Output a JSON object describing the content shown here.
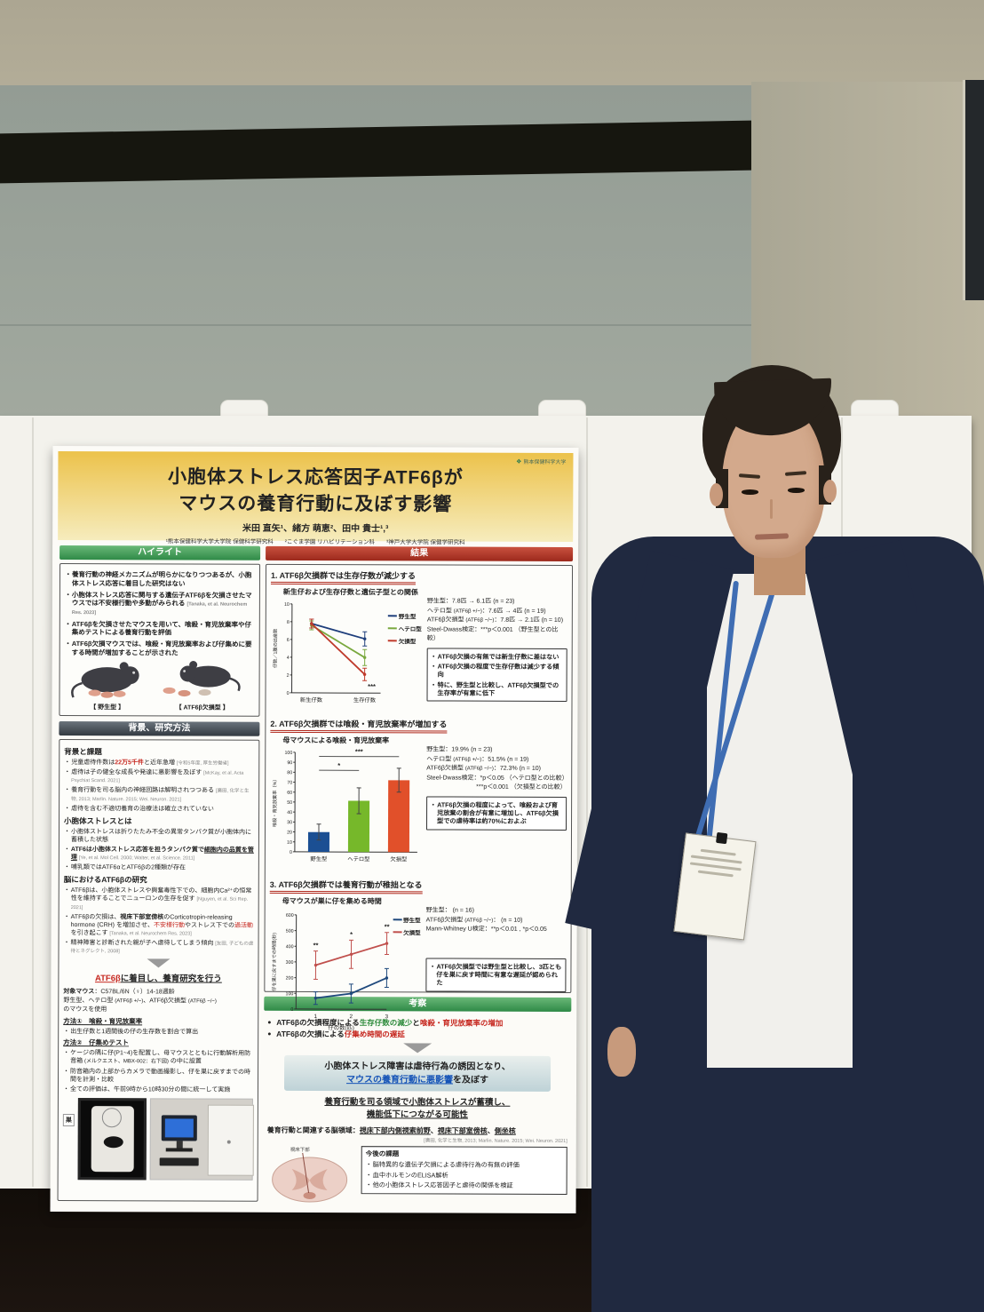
{
  "poster": {
    "logo_text": "熊本保健科学大学",
    "title_line1": "小胞体ストレス応答因子ATF6βが",
    "title_line2": "マウスの養育行動に及ぼす影響",
    "authors": "米田 直矢¹、緒方 萌恵²、田中 貴士¹,³",
    "affiliations": "¹熊本保健科学大学大学院 保健科学研究科　　²こぐま学園 リハビリテーション科　　³神戸大学大学院 保健学研究科",
    "highlights": {
      "header": "ハイライト",
      "bullets": [
        [
          {
            "t": "養育行動の神経メカニズムが明らかになりつつあるが、小胞体ストレス応答に着目した研究はない"
          }
        ],
        [
          {
            "t": "小胞体ストレス応答に関与する遺伝子ATF6βを欠損させたマウスでは不安様行動や多動がみられる "
          },
          {
            "t": "[Tanaka, et al. Neurochem Res. 2023]",
            "s": "ref"
          }
        ],
        [
          {
            "t": "ATF6βを欠損させたマウスを用いて、喰殺・育児放棄率や仔集めテストによる養育行動を評価"
          }
        ],
        [
          {
            "t": "ATF6β欠損マウスでは、喰殺・育児放棄率および仔集めに要する時間が増加することが示された"
          }
        ]
      ],
      "mouse_labels": [
        "【 野生型 】",
        "【 ATF6β欠損型 】"
      ]
    },
    "background": {
      "header": "背景、研究方法",
      "issues_title": "背景と課題",
      "issues": [
        [
          {
            "t": "児童虐待件数は"
          },
          {
            "t": "22万5千件",
            "s": "r bold"
          },
          {
            "t": "と近年急増 "
          },
          {
            "t": "[令和5年度, 厚生労働省]",
            "s": "ref"
          }
        ],
        [
          {
            "t": "虐待は子の健全な成長や発達に悪影響を及ぼす "
          },
          {
            "t": "[McKay, et al. Acta Psychiat Scand. 2021]",
            "s": "ref"
          }
        ],
        [
          {
            "t": "養育行動を司る脳内の神経回路は解明されつつある "
          },
          {
            "t": "[廣田, 化学と生物, 2013; Marlin. Nature. 2015; Wei. Neuron. 2021]",
            "s": "ref"
          }
        ],
        [
          {
            "t": "虐待を含む不適切養育の治療法は確立されていない"
          }
        ]
      ],
      "er_title": "小胞体ストレスとは",
      "er": [
        [
          {
            "t": "小胞体ストレスは折りたたみ不全の異常タンパク質が小胞体内に蓄積した状態"
          }
        ],
        [
          {
            "t": "ATF6は小胞体ストレス応答を担うタンパク質で",
            "s": "bold"
          },
          {
            "t": "細胞内の品質を管理",
            "s": "bold u"
          },
          {
            "t": " "
          },
          {
            "t": "[Ye, et al. Mol Cell. 2000; Walter, et al. Science. 2011]",
            "s": "ref"
          }
        ],
        [
          {
            "t": "哺乳類ではATF6αとATF6βの2種類が存在"
          }
        ]
      ],
      "brain_title": "脳におけるATF6βの研究",
      "brain": [
        [
          {
            "t": "ATF6βは、小胞体ストレスや興奮毒性下での、細胞内Ca²⁺の恒常性を維持することでニューロンの生存を促す "
          },
          {
            "t": "[Nguyen, et al. Sci Rep. 2021]",
            "s": "ref"
          }
        ],
        [
          {
            "t": "ATF6βの欠損は、"
          },
          {
            "t": "視床下部室傍核",
            "s": "bold"
          },
          {
            "t": "のCorticotropin-releasing hormone (CRH) を増加させ、"
          },
          {
            "t": "不安様行動",
            "s": "r"
          },
          {
            "t": "やストレス下での"
          },
          {
            "t": "過活動",
            "s": "r"
          },
          {
            "t": "を引き起こす "
          },
          {
            "t": "[Tanaka, et al. Neurochem Res. 2023]",
            "s": "ref"
          }
        ],
        [
          {
            "t": "精神障害と診断された親が子へ虐待してしまう傾向 "
          },
          {
            "t": "[友田, 子どもの虐待とネグレクト, 2008]",
            "s": "ref"
          }
        ]
      ],
      "focus": [
        {
          "t": "ATF6β",
          "s": "r u bold"
        },
        {
          "t": "に着目し、養育研究を行う",
          "s": "u bold"
        }
      ],
      "subjects": [
        [
          {
            "t": "対象マウス",
            "s": "bold"
          },
          {
            "t": "：C57BL/6N（♀）14-18週齢"
          }
        ],
        [
          {
            "t": "野生型、ヘテロ型 "
          },
          {
            "t": "(ATF6β +/−)",
            "s": "sm"
          },
          {
            "t": "、ATF6β欠損型 "
          },
          {
            "t": "(ATF6β −/−)",
            "s": "sm"
          }
        ],
        [
          {
            "t": "のマウスを使用"
          }
        ]
      ],
      "method1_title": [
        {
          "t": "方法①　喰殺・育児放棄率",
          "s": "bold u"
        }
      ],
      "method1": [
        [
          {
            "t": "出生仔数と1週間後の仔の生存数を割合で算出"
          }
        ]
      ],
      "method2_title": [
        {
          "t": "方法②　仔集めテスト",
          "s": "bold u"
        }
      ],
      "method2": [
        [
          {
            "t": "ケージの隅に仔(P1~4)を配置し、母マウスとともに行動解析用防音箱 "
          },
          {
            "t": "(メルクエスト、MBX-002：右下図)",
            "s": "sm"
          },
          {
            "t": " の中に設置"
          }
        ],
        [
          {
            "t": "防音箱内の上部からカメラで動画撮影し、仔を巣に戻すまでの時間を計測・比較"
          }
        ],
        [
          {
            "t": "全ての評価は、午前9時から10時30分の間に統一して実施"
          }
        ]
      ],
      "nest_label": "巣"
    },
    "results": {
      "header": "結果",
      "s1": {
        "title": "1. ATF6β欠損群では生存仔数が減少する",
        "chart_title": "新生仔および生存仔数と遺伝子型との関係",
        "stats": [
          [
            {
              "t": "野生型：7.8匹 → 6.1匹 (n = 23)"
            }
          ],
          [
            {
              "t": "ヘテロ型 "
            },
            {
              "t": "(ATF6β +/−)",
              "s": "sm"
            },
            {
              "t": "：7.6匹 → 4匹 (n = 19)"
            }
          ],
          [
            {
              "t": "ATF6β欠損型 "
            },
            {
              "t": "(ATF6β −/−)",
              "s": "sm"
            },
            {
              "t": "：7.8匹 → 2.1匹 (n = 10)"
            }
          ],
          [
            {
              "t": "Steel-Dwass検定：***p＜0.001 （野生型との比較）"
            }
          ]
        ],
        "notes": [
          [
            {
              "t": "ATF6β欠損の有無では新生仔数に差はない"
            }
          ],
          [
            {
              "t": "ATF6β欠損の程度で生存仔数は減少する傾向"
            }
          ],
          [
            {
              "t": "特に、野生型と比較し、ATF6β欠損型での生存率が有意に低下"
            }
          ]
        ]
      },
      "s2": {
        "title": "2. ATF6β欠損群では喰殺・育児放棄率が増加する",
        "chart_title": "母マウスによる喰殺・育児放棄率",
        "stats": [
          [
            {
              "t": "野生型：19.9% (n = 23)"
            }
          ],
          [
            {
              "t": "ヘテロ型 "
            },
            {
              "t": "(ATF6β +/−)",
              "s": "sm"
            },
            {
              "t": "：51.5% (n = 19)"
            }
          ],
          [
            {
              "t": "ATF6β欠損型 "
            },
            {
              "t": "(ATF6β −/−)",
              "s": "sm"
            },
            {
              "t": "：72.3% (n = 10)"
            }
          ],
          [
            {
              "t": "Steel-Dwass検定：*p＜0.05 （ヘテロ型との比較）"
            }
          ],
          [
            {
              "t": "***p＜0.001 （欠損型との比較）",
              "s": "ml"
            }
          ]
        ],
        "notes": [
          [
            {
              "t": "ATF6β欠損の程度によって、喰殺および育児放棄の割合が有意に増加し、ATF6β欠損型での虐待率は約70%におよぶ"
            }
          ]
        ]
      },
      "s3": {
        "title": "3. ATF6β欠損群では養育行動が稚拙となる",
        "chart_title": "母マウスが巣に仔を集める時間",
        "stats": [
          [
            {
              "t": "野生型： (n = 16)"
            }
          ],
          [
            {
              "t": "ATF6β欠損型 "
            },
            {
              "t": "(ATF6β −/−)",
              "s": "sm"
            },
            {
              "t": "： (n = 10)"
            }
          ],
          [
            {
              "t": "Mann-Whitney U検定：**p＜0.01 , *p＜0.05"
            }
          ]
        ],
        "notes": [
          [
            {
              "t": "ATF6β欠損型では野生型と比較し、3匹とも仔を巣に戻す時間に有意な遅延が認められた"
            }
          ]
        ]
      }
    },
    "discussion": {
      "header": "考察",
      "bullets": [
        [
          {
            "t": "ATF6βの欠損程度による"
          },
          {
            "t": "生存仔数の減少",
            "s": "g"
          },
          {
            "t": "と"
          },
          {
            "t": "喰殺・育児放棄率の増加",
            "s": "r"
          }
        ],
        [
          {
            "t": "ATF6βの欠損による"
          },
          {
            "t": "仔集め時間の遅延",
            "s": "r"
          }
        ]
      ],
      "conclusion": [
        [
          {
            "t": "小胞体ストレス障害は虐待行為の誘因となり、"
          }
        ],
        [
          {
            "t": "マウスの養育行動に悪影響",
            "s": "b u"
          },
          {
            "t": "を及ぼす"
          }
        ]
      ],
      "mechanism": [
        "養育行動を司る領域で小胞体ストレスが蓄積し、",
        "機能低下につながる可能性"
      ],
      "brain_line": [
        {
          "t": "養育行動と関連する脳領域：",
          "s": "bold"
        },
        {
          "t": "視床下部内側視索前野",
          "s": "bold u"
        },
        {
          "t": "、",
          "s": "bold"
        },
        {
          "t": "視床下部室傍核",
          "s": "bold u"
        },
        {
          "t": "、",
          "s": "bold"
        },
        {
          "t": "側坐核",
          "s": "bold u"
        }
      ],
      "brain_ref": "[廣田, 化学と生物, 2013; Marlin. Nature. 2015; Wei. Neuron. 2021]",
      "brain_label": "視床下部",
      "future_title": "今後の課題",
      "future": [
        [
          {
            "t": "脳特異的な遺伝子欠損による虐待行為の有無の評価"
          }
        ],
        [
          {
            "t": "血中ホルモンのELISA解析"
          }
        ],
        [
          {
            "t": "他の小胞体ストレス応答因子と虐待の関係を検証"
          }
        ]
      ]
    }
  },
  "chart_data": [
    {
      "type": "line",
      "title": "新生仔および生存仔数と遺伝子型との関係",
      "ylabel": "仔数／1腹の出産数",
      "ylim": [
        0,
        10
      ],
      "yticks": [
        0,
        2,
        4,
        6,
        8,
        10
      ],
      "categories": [
        "新生仔数",
        "生存仔数"
      ],
      "series": [
        {
          "name": "野生型",
          "values": [
            7.8,
            6.1
          ],
          "errors": [
            0.5,
            0.8
          ],
          "color": "#1e3e7b"
        },
        {
          "name": "ヘテロ型",
          "values": [
            7.6,
            4.0
          ],
          "errors": [
            0.5,
            0.9
          ],
          "color": "#79a83e"
        },
        {
          "name": "欠損型",
          "values": [
            7.8,
            2.1
          ],
          "errors": [
            0.5,
            0.7
          ],
          "color": "#bf3a2b"
        }
      ],
      "annotations": [
        {
          "text": "***",
          "series": 2,
          "xIndex": 1,
          "pos": "below"
        }
      ],
      "legend_position": "right",
      "grid": false
    },
    {
      "type": "bar",
      "title": "母マウスによる喰殺・育児放棄率",
      "ylabel": "喰殺・育児放棄率（%）",
      "ylim": [
        0,
        100
      ],
      "yticks": [
        0,
        10,
        20,
        30,
        40,
        50,
        60,
        70,
        80,
        90,
        100
      ],
      "categories": [
        "野生型",
        "ヘテロ型",
        "欠損型"
      ],
      "values": [
        19.9,
        51.5,
        72.3
      ],
      "errors": [
        8,
        13,
        12
      ],
      "colors": [
        "#1b4f93",
        "#76b82a",
        "#e1502a"
      ],
      "sig": [
        {
          "from": 0,
          "to": 1,
          "y": 82,
          "label": "*"
        },
        {
          "from": 0,
          "to": 2,
          "y": 96,
          "label": "***"
        }
      ],
      "grid": false
    },
    {
      "type": "line",
      "title": "母マウスが巣に仔を集める時間",
      "ylabel": "仔を巣に戻すまでの時間(秒)",
      "xlabel": "仔の数(匹)",
      "ylim": [
        0,
        600
      ],
      "yticks": [
        0,
        100,
        200,
        300,
        400,
        500,
        600
      ],
      "categories": [
        "1",
        "2",
        "3"
      ],
      "series": [
        {
          "name": "野生型",
          "values": [
            70,
            100,
            200
          ],
          "errors": [
            40,
            60,
            60
          ],
          "color": "#1f497d"
        },
        {
          "name": "欠損型",
          "values": [
            280,
            350,
            420
          ],
          "errors": [
            90,
            90,
            70
          ],
          "color": "#c0504d"
        }
      ],
      "annotations": [
        {
          "text": "**",
          "series": 1,
          "xIndex": 0,
          "pos": "above"
        },
        {
          "text": "*",
          "series": 1,
          "xIndex": 1,
          "pos": "above"
        },
        {
          "text": "**",
          "series": 1,
          "xIndex": 2,
          "pos": "above"
        }
      ],
      "legend_position": "right",
      "grid": false
    }
  ]
}
